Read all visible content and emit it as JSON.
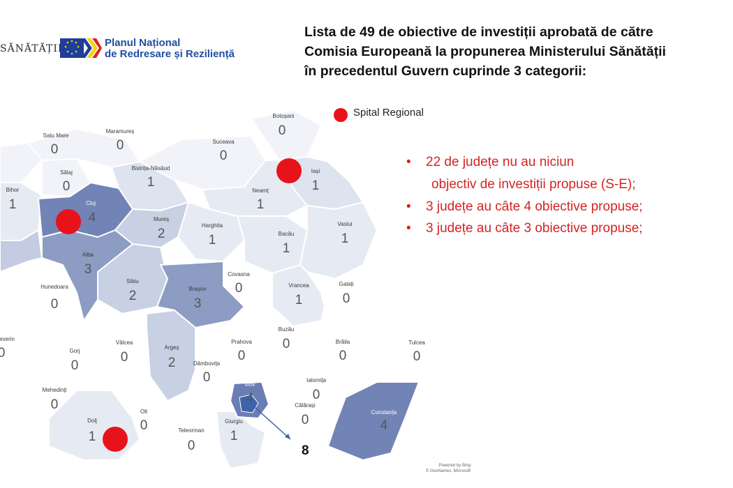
{
  "header": {
    "ministry_text": "SĂNĂTĂȚII",
    "program_line1": "Planul Național",
    "program_line2": "de Redresare și Reziliență"
  },
  "title": {
    "line1": "Lista de 49 de obiective de investiții aprobată de către",
    "line2": "Comisia Europeană la propunerea Ministerului Sănătății",
    "line3": "în precedentul Guvern cuprinde 3 categorii:"
  },
  "legend": {
    "label": "Spital Regional",
    "color": "#e8121b"
  },
  "bullets": [
    {
      "line1": "22 de județe nu au niciun",
      "line2": "objectiv de investiții propuse (S-E);"
    },
    {
      "line1": "3 județe au câte 4 obiective propuse;"
    },
    {
      "line1": "3 județe au câte 3 obiective propuse;"
    }
  ],
  "counties": {
    "satu_mare": {
      "name": "Satu Mare",
      "value": "0"
    },
    "maramures": {
      "name": "Maramureș",
      "value": "0"
    },
    "botosani": {
      "name": "Botoșani",
      "value": "0"
    },
    "suceava": {
      "name": "Suceava",
      "value": "0"
    },
    "salaj": {
      "name": "Sălaj",
      "value": "0"
    },
    "bistrita": {
      "name": "Bistrița-Năsăud",
      "value": "1"
    },
    "iasi": {
      "name": "Iași",
      "value": "1"
    },
    "bihor": {
      "name": "Bihor",
      "value": "1"
    },
    "cluj": {
      "name": "Cluj",
      "value": "4"
    },
    "neamt": {
      "name": "Neamț",
      "value": "1"
    },
    "mures": {
      "name": "Mureș",
      "value": "2"
    },
    "harghita": {
      "name": "Harghita",
      "value": "1"
    },
    "bacau": {
      "name": "Bacău",
      "value": "1"
    },
    "vaslui": {
      "name": "Vaslui",
      "value": "1"
    },
    "alba": {
      "name": "Alba",
      "value": "3"
    },
    "covasna": {
      "name": "Covasna",
      "value": "0"
    },
    "hunedoara": {
      "name": "Hunedoara",
      "value": "0"
    },
    "sibiu": {
      "name": "Sibiu",
      "value": "2"
    },
    "brasov": {
      "name": "Brașov",
      "value": "3"
    },
    "vrancea": {
      "name": "Vrancea",
      "value": "1"
    },
    "galati": {
      "name": "Galați",
      "value": "0"
    },
    "buzau": {
      "name": "Buzău",
      "value": "0"
    },
    "severin": {
      "name": "everin",
      "value": "0"
    },
    "gorj": {
      "name": "Gorj",
      "value": "0"
    },
    "valcea": {
      "name": "Vâlcea",
      "value": "0"
    },
    "arges": {
      "name": "Argeș",
      "value": "2"
    },
    "prahova": {
      "name": "Prahova",
      "value": "0"
    },
    "braila": {
      "name": "Brăila",
      "value": "0"
    },
    "tulcea": {
      "name": "Tulcea",
      "value": "0"
    },
    "dambovita": {
      "name": "Dâmbovița",
      "value": "0"
    },
    "ilfov": {
      "name": "Ilfov",
      "value": "4"
    },
    "ialomita": {
      "name": "Ialomița",
      "value": "0"
    },
    "mehedinti": {
      "name": "Mehedinți",
      "value": "0"
    },
    "olt": {
      "name": "Olt",
      "value": "0"
    },
    "calarasi": {
      "name": "Călărași",
      "value": "0"
    },
    "constanta": {
      "name": "Constanța",
      "value": "4"
    },
    "dolj": {
      "name": "Dolj",
      "value": "1"
    },
    "teleorman": {
      "name": "Teleorman",
      "value": "0"
    },
    "giurgiu": {
      "name": "Giurgiu",
      "value": "1"
    }
  },
  "bucharest_label": "8",
  "credit": {
    "line1": "Powered by Bing",
    "line2": "© GeoNames, Microsoft"
  },
  "colors": {
    "level0": "#ffffff",
    "level1": "#dde3ef",
    "level2": "#c3cce0",
    "level3": "#8c9cc2",
    "level4": "#7283b5",
    "bucharest": "#3e63a8"
  }
}
